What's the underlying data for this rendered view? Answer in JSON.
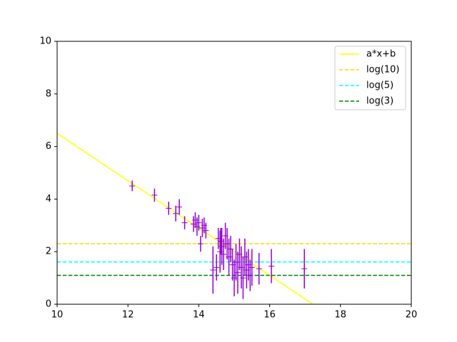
{
  "chart_data": {
    "type": "scatter",
    "xlim": [
      10,
      20
    ],
    "ylim": [
      0,
      10
    ],
    "xticks": [
      10,
      12,
      14,
      16,
      18,
      20
    ],
    "yticks": [
      0,
      2,
      4,
      6,
      8,
      10
    ],
    "legend": "upper right",
    "series": [
      {
        "name": "a*x+b",
        "color": "#ffff00",
        "dashed": false,
        "x": [
          10,
          17.22
        ],
        "values": [
          6.5,
          0
        ]
      },
      {
        "name": "log(10)",
        "color": "#ffd700",
        "dashed": true,
        "x": [
          10,
          20
        ],
        "values": [
          2.303,
          2.303
        ]
      },
      {
        "name": "log(5)",
        "color": "#00ffff",
        "dashed": true,
        "x": [
          10,
          20
        ],
        "values": [
          1.609,
          1.609
        ]
      },
      {
        "name": "log(3)",
        "color": "#008000",
        "dashed": true,
        "x": [
          10,
          20
        ],
        "values": [
          1.099,
          1.099
        ]
      }
    ],
    "points": {
      "color": "#9400d3",
      "x": [
        12.12,
        12.75,
        13.15,
        13.35,
        13.45,
        13.6,
        13.85,
        13.9,
        13.95,
        14.0,
        14.05,
        14.1,
        14.15,
        14.2,
        14.4,
        14.5,
        14.55,
        14.6,
        14.62,
        14.65,
        14.7,
        14.75,
        14.8,
        14.85,
        14.9,
        14.95,
        15.0,
        15.05,
        15.1,
        15.15,
        15.2,
        15.25,
        15.3,
        15.35,
        15.4,
        15.45,
        15.5,
        15.7,
        16.05,
        16.98
      ],
      "values": [
        4.5,
        4.15,
        3.65,
        3.45,
        3.7,
        3.1,
        3.05,
        3.2,
        2.95,
        3.1,
        2.3,
        2.9,
        3.0,
        2.8,
        1.3,
        1.4,
        2.5,
        2.0,
        2.4,
        2.2,
        1.9,
        2.6,
        2.3,
        1.8,
        2.1,
        1.5,
        1.0,
        1.6,
        1.2,
        1.9,
        1.4,
        1.0,
        1.8,
        1.3,
        1.5,
        1.1,
        1.4,
        1.35,
        1.45,
        1.35
      ],
      "errors": [
        0.2,
        0.25,
        0.25,
        0.3,
        0.3,
        0.25,
        0.3,
        0.3,
        0.35,
        0.3,
        0.3,
        0.35,
        0.3,
        0.3,
        0.9,
        0.5,
        0.4,
        0.8,
        0.5,
        0.7,
        0.6,
        0.5,
        0.6,
        0.7,
        0.5,
        0.6,
        0.7,
        0.7,
        0.8,
        0.6,
        0.8,
        0.8,
        0.7,
        0.7,
        0.6,
        0.6,
        0.7,
        0.6,
        0.65,
        0.75
      ]
    }
  }
}
